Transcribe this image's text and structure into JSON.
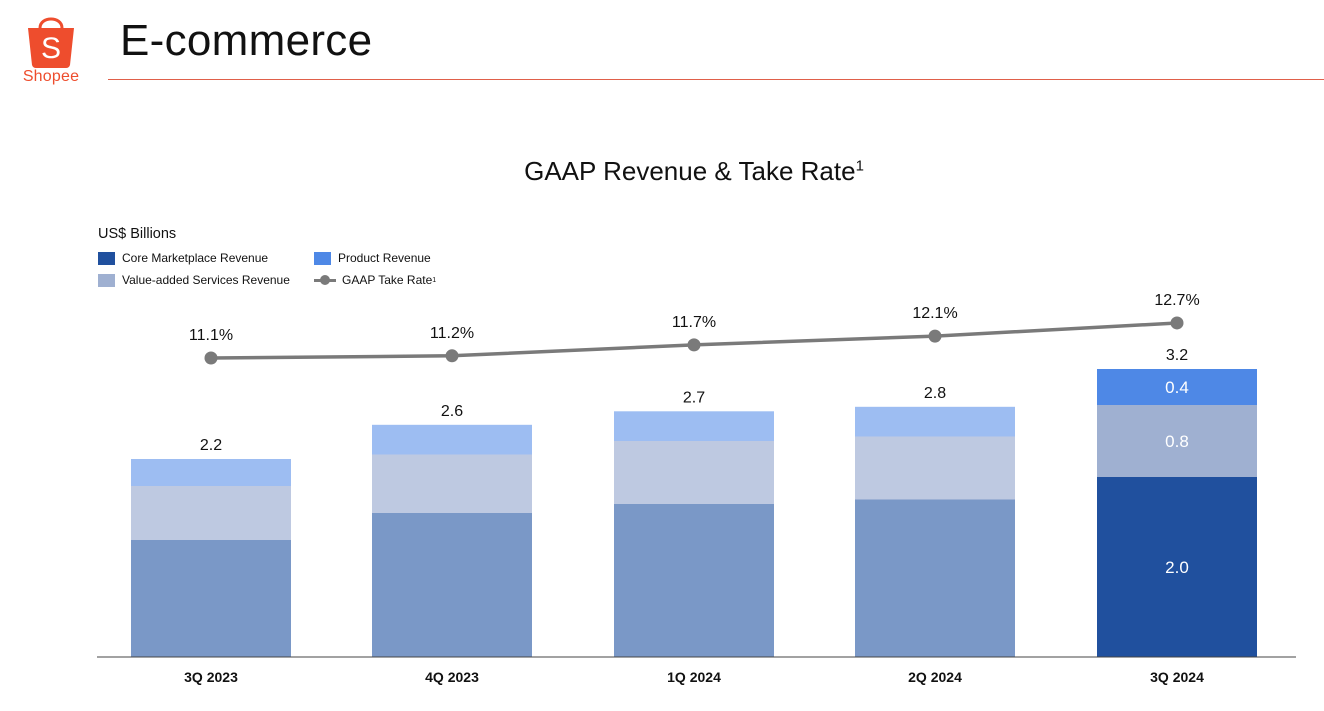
{
  "brand": {
    "name": "Shopee",
    "logo_glyph": "S",
    "color": "#ee4d2d"
  },
  "page": {
    "title": "E-commerce"
  },
  "chart_data": {
    "type": "bar",
    "stacked": true,
    "title": "GAAP Revenue & Take Rate",
    "title_footnote": "1",
    "ylabel": "US$ Billions",
    "categories": [
      "3Q 2023",
      "4Q 2023",
      "1Q 2024",
      "2Q 2024",
      "3Q 2024"
    ],
    "ylim": [
      0,
      3.2
    ],
    "series": [
      {
        "name": "Core Marketplace Revenue",
        "color": "#20509e",
        "muted_color": "#7a98c7",
        "values": [
          1.3,
          1.6,
          1.7,
          1.75,
          2.0
        ],
        "labels": [
          "",
          "",
          "",
          "",
          "2.0"
        ]
      },
      {
        "name": "Value-added Services Revenue",
        "color": "#9fb0d1",
        "muted_color": "#bec9e1",
        "values": [
          0.6,
          0.65,
          0.7,
          0.7,
          0.8
        ],
        "labels": [
          "",
          "",
          "",
          "",
          "0.8"
        ]
      },
      {
        "name": "Product Revenue",
        "color": "#4e88e6",
        "muted_color": "#9dbdf2",
        "values": [
          0.3,
          0.33,
          0.33,
          0.33,
          0.4
        ],
        "labels": [
          "",
          "",
          "",
          "",
          "0.4"
        ]
      }
    ],
    "totals": [
      "2.2",
      "2.6",
      "2.7",
      "2.8",
      "3.2"
    ],
    "highlight_index": 4,
    "line_series": {
      "name": "GAAP Take Rate",
      "footnote": "1",
      "color": "#7a7a7a",
      "values": [
        11.1,
        11.2,
        11.7,
        12.1,
        12.7
      ],
      "labels": [
        "11.1%",
        "11.2%",
        "11.7%",
        "12.1%",
        "12.7%"
      ]
    }
  }
}
